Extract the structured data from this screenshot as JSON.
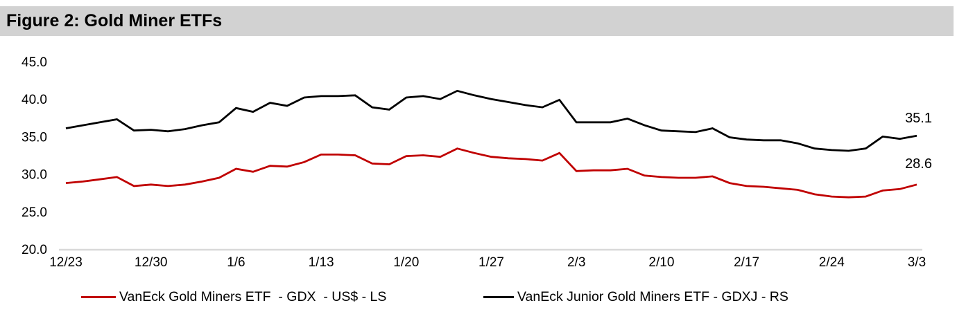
{
  "figure_header": {
    "title": "Figure 2: Gold Miner ETFs",
    "bg_color": "#D2D2D2",
    "text_color": "#000000"
  },
  "chart_data": {
    "type": "line",
    "title": "Figure 2: Gold Miner ETFs",
    "grid": false,
    "legend_position": "bottom",
    "axis_color": "#D9D9D9",
    "ylim": [
      20,
      45
    ],
    "y_ticks": [
      {
        "label": "45.0",
        "value": 45
      },
      {
        "label": "40.0",
        "value": 40
      },
      {
        "label": "35.0",
        "value": 35
      },
      {
        "label": "30.0",
        "value": 30
      },
      {
        "label": "25.0",
        "value": 25
      },
      {
        "label": "20.0",
        "value": 20
      }
    ],
    "x_tick_labels": [
      "12/23",
      "12/30",
      "1/6",
      "1/13",
      "1/20",
      "1/27",
      "2/3",
      "2/10",
      "2/17",
      "2/24",
      "3/3"
    ],
    "x_tick_point_step": 5,
    "series": [
      {
        "id": "gdx",
        "name": "VanEck Gold Miners ETF  - GDX  - US$ - LS",
        "color": "#C00000",
        "end_label": "28.6",
        "values": [
          28.8,
          29.0,
          29.3,
          29.6,
          28.4,
          28.6,
          28.4,
          28.6,
          29.0,
          29.5,
          30.7,
          30.3,
          31.1,
          31.0,
          31.6,
          32.6,
          32.6,
          32.5,
          31.4,
          31.3,
          32.4,
          32.5,
          32.3,
          33.4,
          32.8,
          32.3,
          32.1,
          32.0,
          31.8,
          32.8,
          30.4,
          30.5,
          30.5,
          30.7,
          29.8,
          29.6,
          29.5,
          29.5,
          29.7,
          28.8,
          28.4,
          28.3,
          28.1,
          27.9,
          27.3,
          27.0,
          26.9,
          27.0,
          27.8,
          28.0,
          28.6
        ]
      },
      {
        "id": "gdxj",
        "name": "VanEck Junior Gold Miners ETF - GDXJ - RS",
        "color": "#000000",
        "end_label": "35.1",
        "values": [
          36.1,
          36.5,
          36.9,
          37.3,
          35.8,
          35.9,
          35.7,
          36.0,
          36.5,
          36.9,
          38.8,
          38.3,
          39.5,
          39.1,
          40.2,
          40.4,
          40.4,
          40.5,
          38.9,
          38.6,
          40.2,
          40.4,
          40.0,
          41.1,
          40.5,
          40.0,
          39.6,
          39.2,
          38.9,
          39.9,
          36.9,
          36.9,
          36.9,
          37.4,
          36.5,
          35.8,
          35.7,
          35.6,
          36.1,
          34.9,
          34.6,
          34.5,
          34.5,
          34.1,
          33.4,
          33.2,
          33.1,
          33.4,
          35.0,
          34.7,
          35.1
        ]
      }
    ]
  }
}
